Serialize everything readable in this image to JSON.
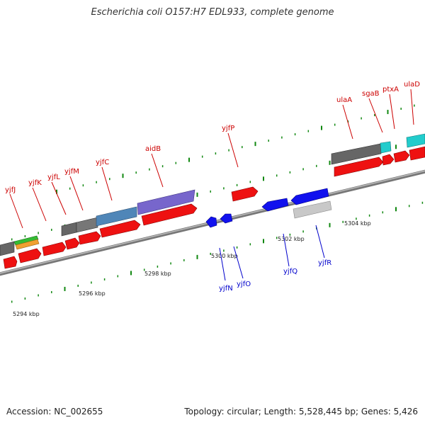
{
  "title": "Escherichia coli O157:H7 EDL933, complete genome",
  "footer": {
    "accession": "Accession: NC_002655",
    "summary": "Topology: circular; Length: 5,528,445 bp; Genes: 5,426"
  },
  "colors": {
    "red": "#ee1111",
    "blue": "#1111ee",
    "grey": "#666666",
    "light_grey": "#c8c8c8",
    "cyan": "#22cccc",
    "purple": "#7766cc",
    "steel": "#4f86b8",
    "green": "#33bb33",
    "orange": "#f0a030",
    "tick": "#118811",
    "backbone": "#999999",
    "label_top": "#cc0000",
    "label_bottom": "#0000cc"
  },
  "kbp_labels": [
    "5294 kbp",
    "5296 kbp",
    "5298 kbp",
    "5300 kbp",
    "5302 kbp",
    "5304 kbp"
  ],
  "top_labels": [
    "yjfJ",
    "yjfK",
    "yjfL",
    "yjfM",
    "yjfC",
    "aidB",
    "yjfP",
    "ulaA",
    "sgaB",
    "ptxA",
    "ulaD"
  ],
  "bottom_labels": [
    "yjfN",
    "yjfO",
    "yjfQ",
    "yjfR"
  ]
}
